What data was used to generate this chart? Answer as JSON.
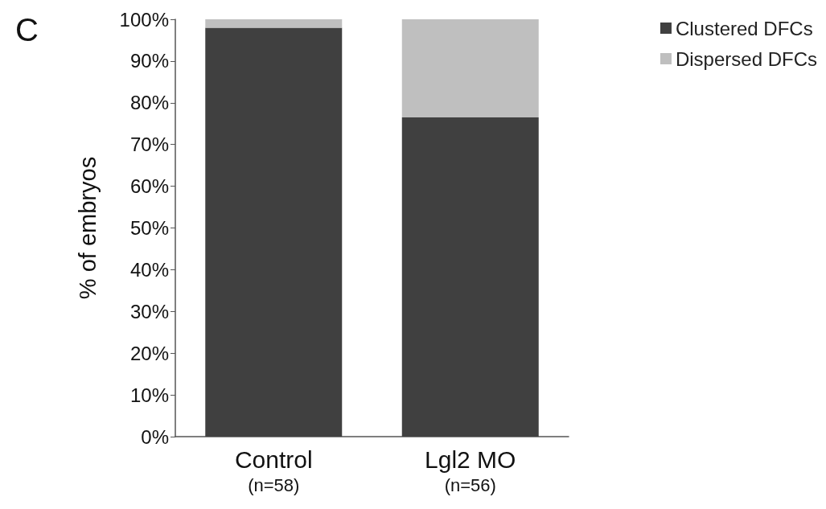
{
  "chart_data": {
    "type": "bar",
    "title": "C",
    "ylabel": "% of embryos",
    "categories": [
      "Control\n(n=58)",
      "Lgl2 MO\n(n=56)"
    ],
    "series": [
      {
        "name": "Clustered DFCs",
        "color": "#404040",
        "values": [
          98,
          76.5
        ]
      },
      {
        "name": "Dispersed DFCs",
        "color": "#bfbfbf",
        "values": [
          2,
          23.5
        ]
      }
    ],
    "stacked": true,
    "ylim": [
      0,
      100
    ],
    "yticks": [
      {
        "value": 0,
        "label": "0%"
      },
      {
        "value": 10,
        "label": "10%"
      },
      {
        "value": 20,
        "label": "20%"
      },
      {
        "value": 30,
        "label": "30%"
      },
      {
        "value": 40,
        "label": "40%"
      },
      {
        "value": 50,
        "label": "50%"
      },
      {
        "value": 60,
        "label": "60%"
      },
      {
        "value": 70,
        "label": "70%"
      },
      {
        "value": 80,
        "label": "80%"
      },
      {
        "value": 90,
        "label": "90%"
      },
      {
        "value": 100,
        "label": "100%"
      }
    ],
    "grid": false,
    "legend": "top right"
  }
}
